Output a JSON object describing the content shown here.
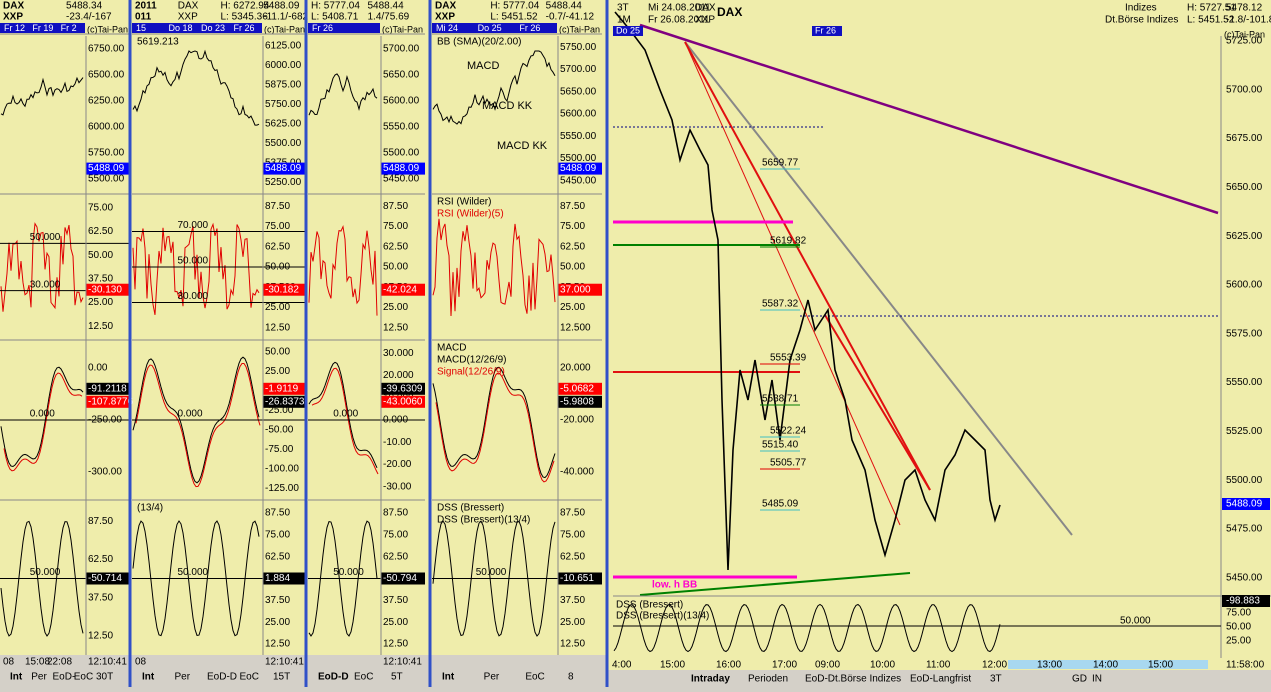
{
  "panels": [
    {
      "header": {
        "row1": [
          "DAX",
          "5488.34"
        ],
        "row2": [
          "XXP",
          "-23.4/-167"
        ]
      },
      "dates": [
        "Fr 12",
        "Fr 19",
        "Fr 2"
      ],
      "tab": "(c)Tai-Pan",
      "subs": [
        {
          "ticks": [
            "6750.00",
            "6500.00",
            "6250.00",
            "6000.00",
            "5750.00",
            "5500.00"
          ],
          "markers": [
            {
              "text": "5488.09",
              "color": "#0000ff"
            }
          ]
        },
        {
          "ticks": [
            "75.00",
            "62.50",
            "50.00",
            "37.50",
            "25.00",
            "12.50"
          ],
          "levels": [
            "50.000",
            "30.000"
          ],
          "markers": [
            {
              "text": "-30.130",
              "color": "#ff0000"
            }
          ]
        },
        {
          "ticks": [
            "0.00",
            "-250.00",
            "-300.00"
          ],
          "levels": [
            "0.000"
          ],
          "markers": [
            {
              "text": "-91.2118",
              "color": "#000000"
            },
            {
              "text": "-107.8776",
              "color": "#ff0000"
            }
          ]
        },
        {
          "ticks": [
            "87.50",
            "62.50",
            "37.50",
            "12.50"
          ],
          "levels": [
            "50.000"
          ],
          "markers": [
            {
              "text": "-50.714",
              "color": "#000000"
            }
          ]
        }
      ],
      "footer": {
        "tabs": [
          "Int",
          "Per",
          "EoD-",
          "EoC"
        ],
        "times": [
          "08",
          "15:08",
          "22:08"
        ],
        "timeframe": "30T",
        "clock": "12:10:41"
      }
    },
    {
      "header": {
        "row1": [
          "2011",
          "DAX",
          "H: 6272.94",
          "5488.09"
        ],
        "row2": [
          "011",
          "XXP",
          "L: 5345.36",
          "-11.1/-682"
        ]
      },
      "dates": [
        "15",
        "Do 18",
        "Do 23",
        "Fr 26"
      ],
      "tab": "(c)Tai-Pan",
      "subs": [
        {
          "label": "5619.213",
          "ticks": [
            "6125.00",
            "6000.00",
            "5875.00",
            "5750.00",
            "5625.00",
            "5500.00",
            "5375.00",
            "5250.00"
          ],
          "markers": [
            {
              "text": "5488.09",
              "color": "#0000ff"
            }
          ]
        },
        {
          "ticks": [
            "87.50",
            "75.00",
            "62.50",
            "50.00",
            "37.500",
            "25.00",
            "12.50"
          ],
          "levels": [
            "70.000",
            "50.000",
            "30.000"
          ],
          "markers": [
            {
              "text": "-30.182",
              "color": "#ff0000"
            }
          ]
        },
        {
          "ticks": [
            "50.00",
            "25.00",
            "0.00",
            "-25.00",
            "-50.00",
            "-75.00",
            "-100.00",
            "-125.00"
          ],
          "levels": [
            "0.000"
          ],
          "markers": [
            {
              "text": "-1.9119",
              "color": "#ff0000"
            },
            {
              "text": "-26.8373",
              "color": "#000000"
            }
          ]
        },
        {
          "label": "(13/4)",
          "ticks": [
            "87.50",
            "75.00",
            "62.50",
            "50.00",
            "37.50",
            "25.00",
            "12.50"
          ],
          "levels": [
            "50.000"
          ],
          "markers": [
            {
              "text": "1.884",
              "color": "#000000"
            }
          ]
        }
      ],
      "footer": {
        "tabs": [
          "Int",
          "Per",
          "EoD-D",
          "EoC"
        ],
        "times": [
          "08"
        ],
        "timeframe": "15T",
        "clock": "12:10:41"
      }
    },
    {
      "header": {
        "row1": [
          "H: 5777.04",
          "5488.44"
        ],
        "row2": [
          "L: 5408.71",
          "1.4/75.69"
        ]
      },
      "dates": [
        "Fr 26"
      ],
      "tab": "(c)Tai-Pan",
      "subs": [
        {
          "ticks": [
            "5700.00",
            "5650.00",
            "5600.00",
            "5550.00",
            "5500.00",
            "5450.00"
          ],
          "markers": [
            {
              "text": "5488.09",
              "color": "#0000ff"
            }
          ]
        },
        {
          "ticks": [
            "87.50",
            "75.00",
            "62.50",
            "50.00",
            "37.50",
            "25.00",
            "12.50"
          ],
          "markers": [
            {
              "text": "-42.024",
              "color": "#ff0000"
            }
          ]
        },
        {
          "ticks": [
            "30.000",
            "20.000",
            "10.000",
            "0.000",
            "-10.00",
            "-20.00",
            "-30.00"
          ],
          "levels": [
            "0.000"
          ],
          "markers": [
            {
              "text": "-39.6309",
              "color": "#000000"
            },
            {
              "text": "-43.0060",
              "color": "#ff0000"
            }
          ]
        },
        {
          "ticks": [
            "87.50",
            "75.00",
            "62.50",
            "50.00",
            "37.50",
            "25.00",
            "12.50"
          ],
          "levels": [
            "50.000"
          ],
          "markers": [
            {
              "text": "-50.794",
              "color": "#000000"
            }
          ]
        }
      ],
      "footer": {
        "tabs": [
          "EoD-D",
          "EoC"
        ],
        "times": [],
        "timeframe": "5T",
        "clock": "12:10:41"
      }
    },
    {
      "header": {
        "row1": [
          "DAX",
          "H: 5777.04",
          "5488.44"
        ],
        "row2": [
          "XXP",
          "L: 5451.52",
          "-0.7/-41.12"
        ]
      },
      "dates": [
        "Mi 24",
        "Do 25",
        "Fr 26"
      ],
      "tab": "(c)Tai-Pan",
      "subs": [
        {
          "label": "BB (SMA)(20/2.00)",
          "notes": [
            "MACD",
            "MACD KK",
            "MACD KK"
          ],
          "ticks": [
            "5750.00",
            "5700.00",
            "5650.00",
            "5600.00",
            "5550.00",
            "5500.00",
            "5450.00"
          ],
          "markers": [
            {
              "text": "5488.09",
              "color": "#0000ff"
            }
          ]
        },
        {
          "label": "RSI (Wilder)",
          "sublabel": "RSI (Wilder)(5)",
          "ticks": [
            "87.50",
            "75.00",
            "62.50",
            "50.00",
            "37.50",
            "25.00",
            "12.500"
          ],
          "markers": [
            {
              "text": "37.000",
              "color": "#ff0000"
            }
          ]
        },
        {
          "label": "MACD",
          "sublabel": "MACD(12/26/9)",
          "sublabel2": "Signal(12/26/9)",
          "ticks": [
            "20.000",
            "-20.000",
            "-40.000"
          ],
          "markers": [
            {
              "text": "-5.0682",
              "color": "#ff0000"
            },
            {
              "text": "-5.9808",
              "color": "#000000"
            }
          ]
        },
        {
          "label": "DSS (Bressert)",
          "sublabel": "DSS (Bressert)(13/4)",
          "ticks": [
            "87.50",
            "75.00",
            "62.50",
            "50.00",
            "37.50",
            "25.00",
            "12.50"
          ],
          "levels": [
            "50.000"
          ],
          "markers": [
            {
              "text": "-10.651",
              "color": "#000000"
            }
          ]
        }
      ],
      "footer": {
        "tabs": [
          "Int",
          "Per",
          "EoC"
        ],
        "times": [],
        "timeframe": "8",
        "clock": ""
      }
    }
  ],
  "main": {
    "header": [
      "3T",
      "1M",
      "Mi 24.08.2011",
      "Fr 26.08.2011",
      "DAX",
      "XXP",
      "DAX",
      "Indizes",
      "Dt.Börse Indizes",
      "H: 5727.51",
      "L: 5451.52",
      "5478.12",
      "-1.8/-101.8"
    ],
    "tab": "(c)Tai-Pan",
    "dates": [
      "Do 25",
      "Fr 26"
    ],
    "ticks": [
      "5725.00",
      "5700.00",
      "5675.00",
      "5650.00",
      "5625.00",
      "5600.00",
      "5575.00",
      "5550.00",
      "5525.00",
      "5500.00",
      "5475.00",
      "5450.00"
    ],
    "levels": [
      "5659.77",
      "5619.82",
      "5587.32",
      "5553.39",
      "5538.71",
      "5522.24",
      "5515.40",
      "5505.77",
      "5485.09"
    ],
    "band_label": "low. h BB",
    "marker": "5488.09",
    "dss": {
      "label": "DSS (Bressert)",
      "sublabel": "DSS (Bressert)(13/4)",
      "ticks": [
        "75.00",
        "50.00",
        "25.00"
      ],
      "level": "50.000",
      "marker": "-98.883"
    },
    "times": [
      "4:00",
      "15:00",
      "16:00",
      "17:00",
      "09:00",
      "10:00",
      "11:00",
      "12:00",
      "13:00",
      "14:00",
      "15:00"
    ],
    "clock": "11:58:00",
    "tabs": [
      "Intraday",
      "Perioden",
      "EoD-Dt.Börse Indizes",
      "EoD-Langfrist",
      "3T",
      "GD",
      "IN"
    ]
  }
}
